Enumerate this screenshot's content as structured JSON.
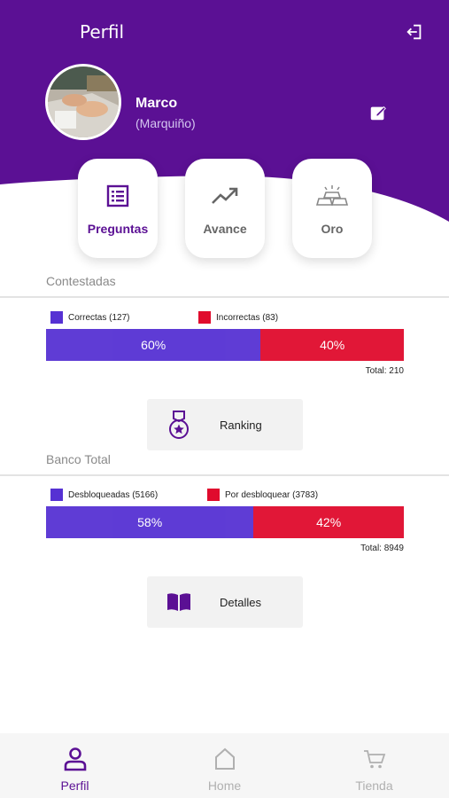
{
  "colors": {
    "header_purple": "#5b1094",
    "bar_purple": "#5631d3",
    "bar_red": "#e00b2d",
    "inactive_gray": "#b0b0b0"
  },
  "header": {
    "title": "Perfil",
    "logout_icon": "logout-icon"
  },
  "profile": {
    "name": "Marco",
    "nickname": "(Marquiño)",
    "edit_icon": "edit-icon"
  },
  "cards": [
    {
      "label": "Preguntas",
      "icon": "list-icon",
      "active": true
    },
    {
      "label": "Avance",
      "icon": "trending-up-icon",
      "active": false
    },
    {
      "label": "Oro",
      "icon": "gold-bars-icon",
      "active": false
    }
  ],
  "answered": {
    "title": "Contestadas",
    "legend_correct": "Correctas (127)",
    "legend_incorrect": "Incorrectas (83)",
    "correct_pct": 60,
    "incorrect_pct": 40,
    "correct_label": "60%",
    "incorrect_label": "40%",
    "total": "Total: 210",
    "button_label": "Ranking"
  },
  "bank": {
    "title": "Banco Total",
    "legend_unlocked": "Desbloqueadas (5166)",
    "legend_locked": "Por desbloquear (3783)",
    "unlocked_pct": 58,
    "locked_pct": 42,
    "unlocked_label": "58%",
    "locked_label": "42%",
    "total": "Total: 8949",
    "button_label": "Detalles"
  },
  "nav": [
    {
      "label": "Perfil",
      "icon": "person-icon",
      "active": true
    },
    {
      "label": "Home",
      "icon": "home-icon",
      "active": false
    },
    {
      "label": "Tienda",
      "icon": "cart-icon",
      "active": false
    }
  ]
}
